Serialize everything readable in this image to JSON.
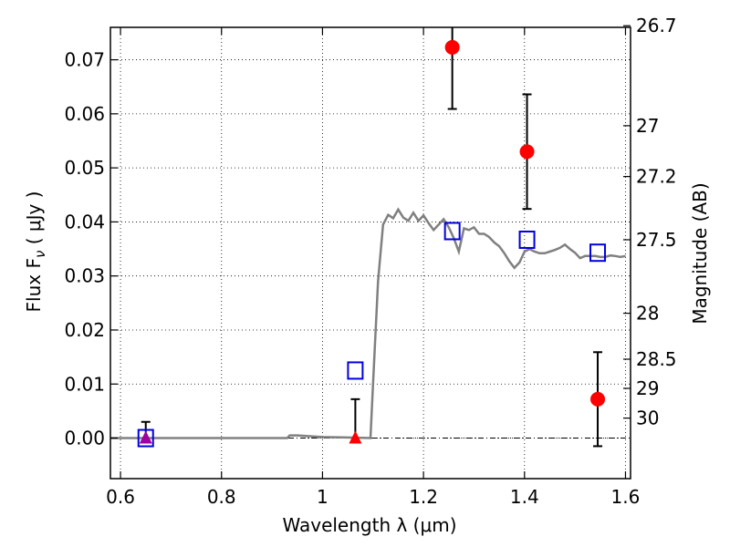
{
  "chart_data": {
    "type": "scatter",
    "xlabel": "Wavelength  λ (μm)",
    "ylabel": "Flux  F",
    "ylabel_sub": "ν",
    "ylabel_unit": " ( μJy )",
    "y2label": "Magnitude (AB)",
    "xlim": [
      0.58,
      1.61
    ],
    "ylim": [
      -0.0075,
      0.076
    ],
    "grid": true,
    "x_ticks": [
      0.6,
      0.8,
      1.0,
      1.2,
      1.4,
      1.6
    ],
    "x_tick_labels": [
      "0.6",
      "0.8",
      "1",
      "1.2",
      "1.4",
      "1.6"
    ],
    "y_ticks": [
      0.0,
      0.01,
      0.02,
      0.03,
      0.04,
      0.05,
      0.06,
      0.07
    ],
    "y_tick_labels": [
      "0.00",
      "0.01",
      "0.02",
      "0.03",
      "0.04",
      "0.05",
      "0.06",
      "0.07"
    ],
    "y2_ticks": [
      {
        "label": "26.7",
        "flux": 0.0763
      },
      {
        "label": "27",
        "flux": 0.0578
      },
      {
        "label": "27.2",
        "flux": 0.0484
      },
      {
        "label": "27.5",
        "flux": 0.0367
      },
      {
        "label": "28",
        "flux": 0.0231
      },
      {
        "label": "28.5",
        "flux": 0.0146
      },
      {
        "label": "29",
        "flux": 0.0092
      },
      {
        "label": "30",
        "flux": 0.0037
      }
    ],
    "model_spectrum": {
      "color": "#808080",
      "x": [
        0.58,
        0.93,
        0.935,
        0.95,
        1.0,
        1.05,
        1.095,
        1.1,
        1.11,
        1.12,
        1.13,
        1.14,
        1.15,
        1.16,
        1.17,
        1.18,
        1.19,
        1.2,
        1.21,
        1.22,
        1.23,
        1.24,
        1.25,
        1.26,
        1.27,
        1.28,
        1.29,
        1.3,
        1.31,
        1.32,
        1.33,
        1.34,
        1.35,
        1.36,
        1.37,
        1.38,
        1.39,
        1.4,
        1.41,
        1.42,
        1.43,
        1.44,
        1.45,
        1.46,
        1.47,
        1.48,
        1.49,
        1.5,
        1.51,
        1.52,
        1.53,
        1.54,
        1.55,
        1.56,
        1.57,
        1.58,
        1.59,
        1.6
      ],
      "y": [
        0.0,
        0.0,
        0.0005,
        0.0005,
        0.0002,
        0.0001,
        0.0,
        0.01,
        0.029,
        0.0395,
        0.0413,
        0.0407,
        0.0423,
        0.0408,
        0.0402,
        0.0417,
        0.0402,
        0.0412,
        0.0398,
        0.0385,
        0.0395,
        0.0405,
        0.039,
        0.037,
        0.0345,
        0.0388,
        0.0385,
        0.039,
        0.0378,
        0.0378,
        0.0372,
        0.0362,
        0.0355,
        0.0342,
        0.0327,
        0.0315,
        0.0325,
        0.0345,
        0.035,
        0.0345,
        0.0342,
        0.0342,
        0.0345,
        0.0348,
        0.0352,
        0.0358,
        0.035,
        0.0343,
        0.0333,
        0.0337,
        0.0337,
        0.0337,
        0.0335,
        0.0335,
        0.0338,
        0.0337,
        0.0335,
        0.0337
      ]
    },
    "model_photometry": {
      "color": "#0000dd",
      "x": [
        0.65,
        1.065,
        1.257,
        1.405,
        1.545
      ],
      "y": [
        0.0,
        0.0125,
        0.0383,
        0.0367,
        0.0343
      ]
    },
    "detections": {
      "color": "#ff0000",
      "points": [
        {
          "x": 1.257,
          "y": 0.0723,
          "err": 0.0114
        },
        {
          "x": 1.405,
          "y": 0.053,
          "err": 0.0106
        },
        {
          "x": 1.545,
          "y": 0.0072,
          "err": 0.0087
        }
      ]
    },
    "upper_limits": {
      "points": [
        {
          "x": 0.65,
          "y": 0.0,
          "err": 0.003,
          "color": "#a000a0"
        },
        {
          "x": 1.065,
          "y": 0.0,
          "err": 0.0072,
          "color": "#ff0000"
        }
      ]
    }
  }
}
